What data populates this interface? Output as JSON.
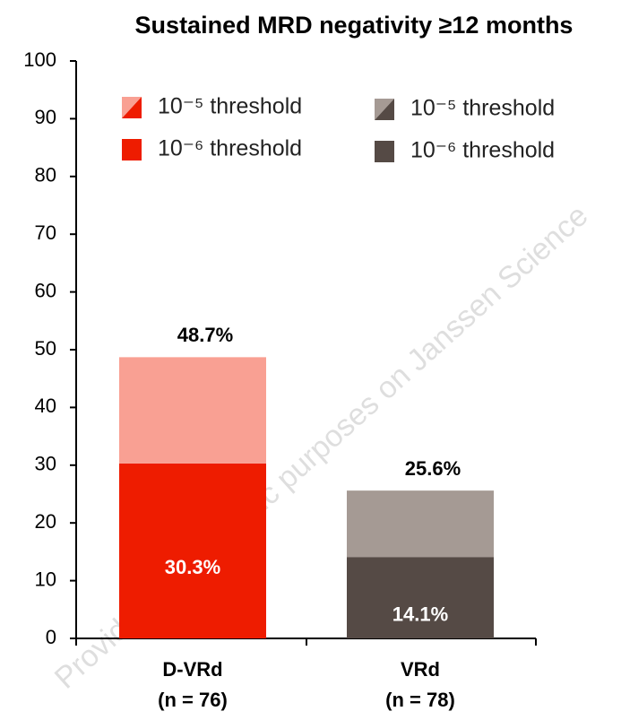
{
  "chart_data": {
    "type": "stacked_bar",
    "title": "Sustained MRD negativity ≥12 months",
    "categories": [
      "D-VRd",
      "VRd"
    ],
    "category_notes": [
      "(n = 76)",
      "(n = 78)"
    ],
    "series": [
      {
        "name": "10⁻⁶ threshold",
        "colors": [
          "#ee1c00",
          "#554a45"
        ],
        "values": [
          30.3,
          14.1
        ],
        "value_labels": [
          "30.3%",
          "14.1%"
        ]
      },
      {
        "name": "10⁻⁵ threshold",
        "colors": [
          "#f9a093",
          "#a59a94"
        ],
        "values": [
          18.4,
          11.5
        ]
      }
    ],
    "totals": {
      "values": [
        48.7,
        25.6
      ],
      "value_labels": [
        "48.7%",
        "25.6%"
      ]
    },
    "ylim": [
      0,
      100
    ],
    "yticks": [
      0,
      10,
      20,
      30,
      40,
      50,
      60,
      70,
      80,
      90,
      100
    ],
    "grid": false,
    "watermark": "Provided for scientific purposes on Janssen Science"
  }
}
